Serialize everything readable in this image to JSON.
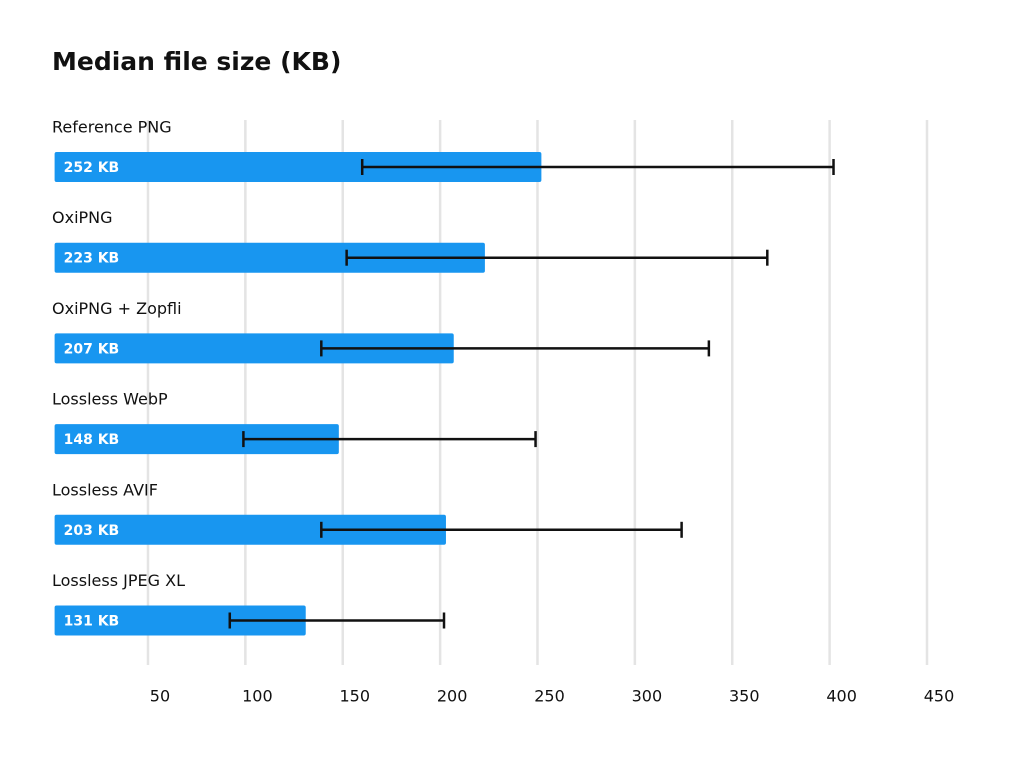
{
  "chart_data": {
    "type": "bar",
    "orientation": "horizontal",
    "title": "Median file size (KB)",
    "categories": [
      "Reference PNG",
      "OxiPNG",
      "OxiPNG + Zopfli",
      "Lossless WebP",
      "Lossless AVIF",
      "Lossless JPEG XL"
    ],
    "values": [
      252,
      223,
      207,
      148,
      203,
      131
    ],
    "value_labels": [
      "252 KB",
      "223 KB",
      "207 KB",
      "148 KB",
      "203 KB",
      "131 KB"
    ],
    "err_low": [
      160,
      152,
      139,
      99,
      139,
      92
    ],
    "err_high": [
      402,
      368,
      338,
      249,
      324,
      202
    ],
    "color": "#1896f0",
    "error_color": "#111111",
    "xlim": [
      0,
      450
    ],
    "xticks": [
      50,
      100,
      150,
      200,
      250,
      300,
      350,
      400,
      450
    ],
    "grid": true
  }
}
